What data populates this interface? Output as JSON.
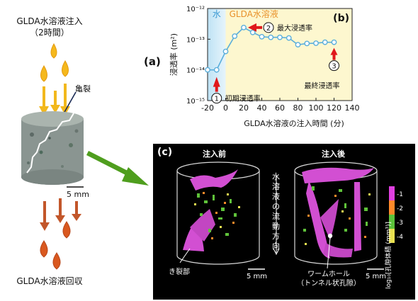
{
  "panel_a": {
    "top_title_line1": "GLDA水溶液注入",
    "top_title_line2": "（2時間）",
    "crack_label": "亀裂",
    "scale_label": "5 mm",
    "bottom_label": "GLDA水溶液回収",
    "panel_tag": "(a)"
  },
  "panel_b": {
    "panel_tag": "(b)",
    "water_label": "水",
    "glda_label": "GLDA水溶液",
    "ann1_num": "1",
    "ann1_text": "初期浸透率",
    "ann2_num": "2",
    "ann2_text": "最大浸透率",
    "ann3_num": "3",
    "ann3_text": "最終浸透率",
    "colors": {
      "water_bg": "#bfe3f5",
      "glda_bg": "#fdf7cf",
      "line": "#5aaedb",
      "arrow": "#e0181b",
      "glda_text": "#e8912a",
      "water_text": "#3b9ad3"
    }
  },
  "chart_data": {
    "type": "line",
    "xlabel": "GLDA水溶液の注入時間 (分)",
    "ylabel": "浸透率 (m²)",
    "x_ticks": [
      "-20",
      "0",
      "20",
      "40",
      "60",
      "80",
      "100",
      "120",
      "140"
    ],
    "y_ticks": [
      "10⁻¹²",
      "10⁻¹³",
      "10⁻¹⁴",
      "10⁻¹⁵"
    ],
    "xlim": [
      -20,
      140
    ],
    "ylim_log10": [
      -15,
      -12
    ],
    "x": [
      -20,
      -10,
      0,
      10,
      20,
      30,
      40,
      50,
      60,
      70,
      80,
      90,
      100,
      110,
      120
    ],
    "log10_y": [
      -14,
      -14,
      -13.4,
      -12.9,
      -12.62,
      -12.78,
      -12.92,
      -12.94,
      -12.94,
      -12.96,
      -13.18,
      -13.14,
      -13.13,
      -13.1,
      -13.1
    ]
  },
  "panel_c": {
    "panel_tag": "(c)",
    "before_label": "注入前",
    "after_label": "注入後",
    "flow_label": "水溶液の流動方向",
    "crack_label": "き裂部",
    "scale_left": "5 mm",
    "scale_right": "5 mm",
    "wormhole_line1": "ワームホール",
    "wormhole_line2": "（トンネル状孔隙）",
    "colorbar_title": "log₁₀[孔隙体積 (mm³)]",
    "colorbar_ticks": [
      "-1",
      "-2",
      "-3",
      "-4"
    ],
    "colorbar_colors": [
      "#e040e0",
      "#ff8a2a",
      "#5cc23a",
      "#e8e050"
    ]
  }
}
